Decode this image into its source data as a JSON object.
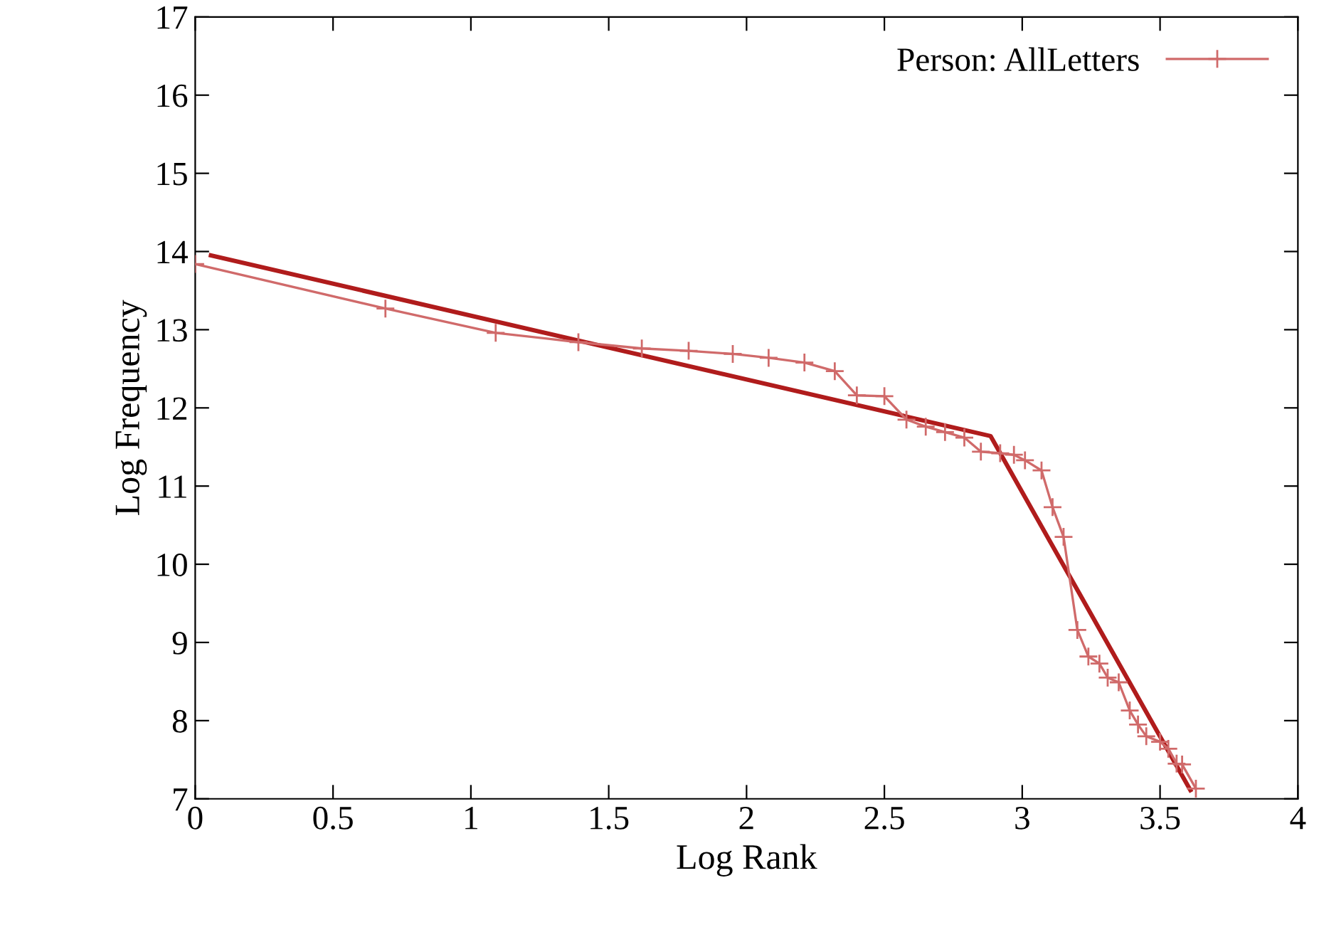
{
  "chart_data": {
    "type": "line",
    "xlabel": "Log Rank",
    "ylabel": "Log Frequency",
    "xlim": [
      0,
      4
    ],
    "ylim": [
      7,
      17
    ],
    "xticks": [
      0,
      0.5,
      1,
      1.5,
      2,
      2.5,
      3,
      3.5,
      4
    ],
    "yticks": [
      7,
      8,
      9,
      10,
      11,
      12,
      13,
      14,
      15,
      16,
      17
    ],
    "grid": false,
    "legend": "top right",
    "series": [
      {
        "name": "Person: AllLetters",
        "color": "#d06a6a",
        "marker": "cross",
        "x": [
          0,
          0.69,
          1.09,
          1.39,
          1.62,
          1.79,
          1.95,
          2.08,
          2.21,
          2.32,
          2.4,
          2.5,
          2.58,
          2.65,
          2.72,
          2.79,
          2.85,
          2.92,
          2.97,
          3.01,
          3.07,
          3.11,
          3.15,
          3.2,
          3.24,
          3.28,
          3.31,
          3.35,
          3.39,
          3.42,
          3.45,
          3.5,
          3.53,
          3.56,
          3.58,
          3.63
        ],
        "values": [
          13.84,
          13.27,
          12.96,
          12.84,
          12.76,
          12.73,
          12.69,
          12.64,
          12.58,
          12.47,
          12.16,
          12.15,
          11.85,
          11.76,
          11.69,
          11.62,
          11.44,
          11.42,
          11.4,
          11.33,
          11.2,
          10.73,
          10.35,
          9.16,
          8.82,
          8.73,
          8.55,
          8.49,
          8.13,
          7.95,
          7.8,
          7.73,
          7.64,
          7.45,
          7.44,
          7.13
        ]
      },
      {
        "color": "#b01c1c",
        "marker": "none",
        "x": [
          0.057,
          2.885,
          3.61
        ],
        "values": [
          13.95,
          11.64,
          7.11
        ]
      }
    ]
  }
}
